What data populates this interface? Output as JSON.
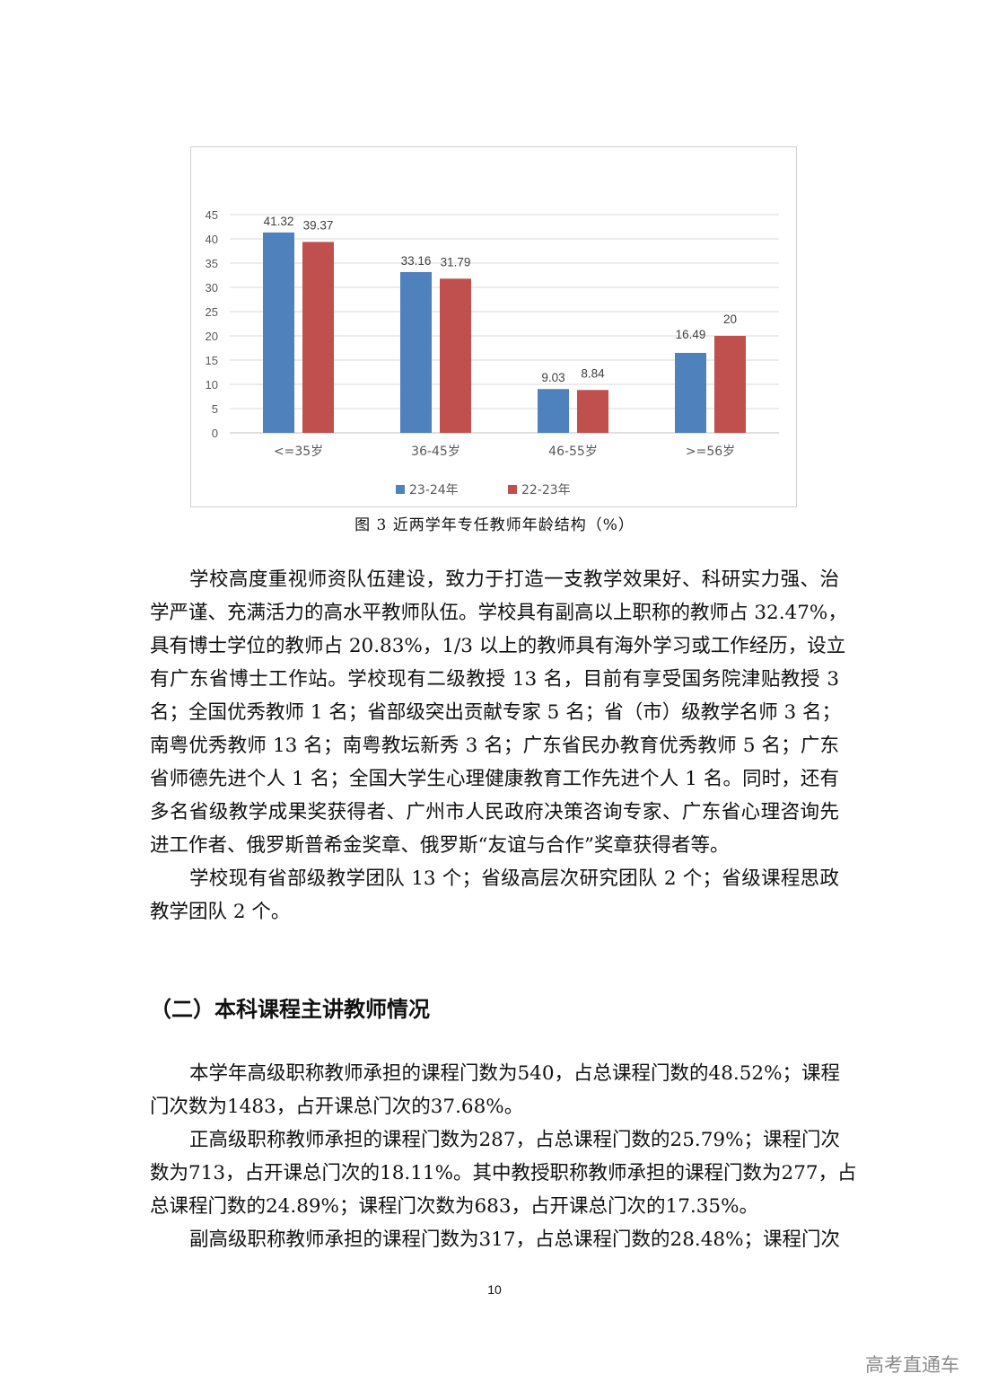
{
  "figure": {
    "caption": "图 3 近两学年专任教师年龄结构（%）"
  },
  "chart_data": {
    "type": "bar",
    "title": "",
    "categories": [
      "<=35岁",
      "36-45岁",
      "46-55岁",
      ">=56岁"
    ],
    "series": [
      {
        "name": "23-24年",
        "values": [
          41.32,
          33.16,
          9.03,
          16.49
        ],
        "color": "#4f81bd"
      },
      {
        "name": "22-23年",
        "values": [
          39.37,
          31.79,
          8.84,
          20
        ],
        "color": "#c0504d"
      }
    ],
    "data_labels": [
      [
        "41.32",
        "33.16",
        "9.03",
        "16.49"
      ],
      [
        "39.37",
        "31.79",
        "8.84",
        "20"
      ]
    ],
    "ylim": [
      0,
      45
    ],
    "yticks": [
      "0",
      "5",
      "10",
      "15",
      "20",
      "25",
      "30",
      "35",
      "40",
      "45"
    ],
    "grid": true,
    "legend_position": "bottom",
    "xlabel": "",
    "ylabel": ""
  },
  "section1": {
    "paragraphs": [
      {
        "lines": [
          "学校高度重视师资队伍建设，致力于打造一支教学效果好、科研实力强、治",
          "学严谨、充满活力的高水平教师队伍。学校具有副高以上职称的教师占 32.47%，",
          "具有博士学位的教师占 20.83%，1/3 以上的教师具有海外学习或工作经历，设立",
          "有广东省博士工作站。学校现有二级教授 13 名，目前有享受国务院津贴教授 3",
          "名；全国优秀教师 1 名；省部级突出贡献专家 5 名；省（市）级教学名师 3 名；",
          "南粤优秀教师 13 名；南粤教坛新秀 3 名；广东省民办教育优秀教师 5 名；广东",
          "省师德先进个人 1 名；全国大学生心理健康教育工作先进个人 1 名。同时，还有",
          "多名省级教学成果奖获得者、广州市人民政府决策咨询专家、广东省心理咨询先",
          "进工作者、俄罗斯普希金奖章、俄罗斯“友谊与合作”奖章获得者等。"
        ]
      },
      {
        "lines": [
          "学校现有省部级教学团队 13 个；省级高层次研究团队 2 个；省级课程思政",
          "教学团队 2 个。"
        ]
      }
    ]
  },
  "section2": {
    "heading": "（二）本科课程主讲教师情况",
    "paragraphs": [
      {
        "lines": [
          "本学年高级职称教师承担的课程门数为540，占总课程门数的48.52%；课程",
          "门次数为1483，占开课总门次的37.68%。"
        ]
      },
      {
        "lines": [
          "正高级职称教师承担的课程门数为287，占总课程门数的25.79%；课程门次",
          "数为713，占开课总门次的18.11%。其中教授职称教师承担的课程门数为277，占",
          "总课程门数的24.89%；课程门次数为683，占开课总门次的17.35%。"
        ]
      },
      {
        "lines": [
          "副高级职称教师承担的课程门数为317，占总课程门数的28.48%；课程门次"
        ],
        "continues": true
      }
    ]
  },
  "footer": {
    "page_number": "10",
    "watermark": "高考直通车"
  }
}
